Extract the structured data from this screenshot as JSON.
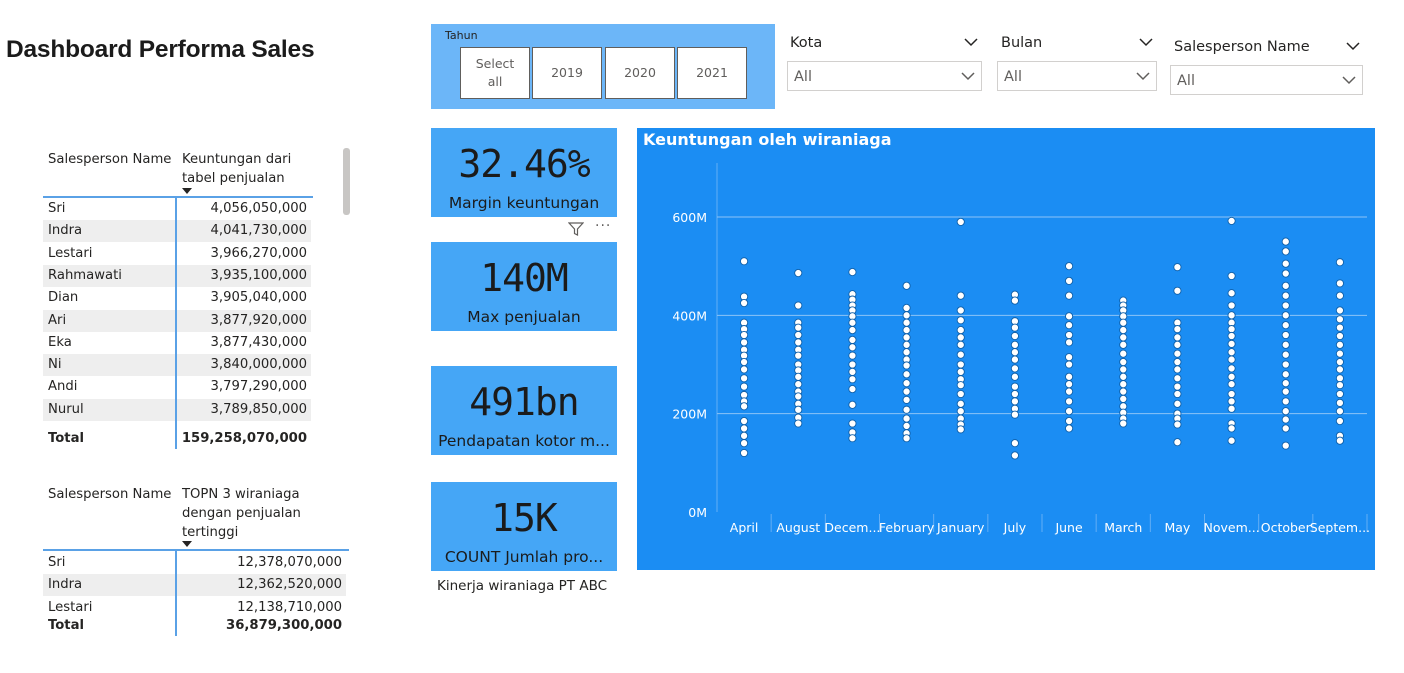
{
  "page": {
    "title": "Dashboard Performa Sales"
  },
  "table_profit": {
    "col_name": "Salesperson Name",
    "col_value": "Keuntungan dari tabel penjualan",
    "rows": [
      {
        "name": "Sri",
        "value": "4,056,050,000"
      },
      {
        "name": "Indra",
        "value": "4,041,730,000"
      },
      {
        "name": "Lestari",
        "value": "3,966,270,000"
      },
      {
        "name": "Rahmawati",
        "value": "3,935,100,000"
      },
      {
        "name": "Dian",
        "value": "3,905,040,000"
      },
      {
        "name": "Ari",
        "value": "3,877,920,000"
      },
      {
        "name": "Eka",
        "value": "3,877,430,000"
      },
      {
        "name": "Ni",
        "value": "3,840,000,000"
      },
      {
        "name": "Andi",
        "value": "3,797,290,000"
      },
      {
        "name": "Nurul",
        "value": "3,789,850,000"
      }
    ],
    "total_label": "Total",
    "total_value": "159,258,070,000"
  },
  "table_top3": {
    "col_name": "Salesperson Name",
    "col_value": "TOPN 3 wiraniaga dengan penjualan tertinggi",
    "rows": [
      {
        "name": "Sri",
        "value": "12,378,070,000"
      },
      {
        "name": "Indra",
        "value": "12,362,520,000"
      },
      {
        "name": "Lestari",
        "value": "12,138,710,000"
      }
    ],
    "total_label": "Total",
    "total_value": "36,879,300,000"
  },
  "slicer_tahun": {
    "title": "Tahun",
    "options": [
      "Select all",
      "2019",
      "2020",
      "2021"
    ]
  },
  "slicers": {
    "kota": {
      "title": "Kota",
      "value": "All"
    },
    "bulan": {
      "title": "Bulan",
      "value": "All"
    },
    "salesperson": {
      "title": "Salesperson Name",
      "value": "All"
    }
  },
  "kpis": [
    {
      "value": "32.46%",
      "label": "Margin keuntungan"
    },
    {
      "value": "140M",
      "label": "Max penjualan"
    },
    {
      "value": "491bn",
      "label": "Pendapatan kotor m..."
    },
    {
      "value": "15K",
      "label": "COUNT Jumlah pro..."
    }
  ],
  "footer_caption": "Kinerja wiraniaga PT ABC",
  "colors": {
    "accent": "#1b8df3",
    "card": "#45a6f6",
    "slicer_bg": "#6cb6f8",
    "table_line": "#5aa1e6"
  },
  "icons": [
    "filter-icon",
    "more-options-icon",
    "chevron-down-icon"
  ],
  "chart_data": {
    "type": "scatter",
    "title": "Keuntungan oleh wiraniaga",
    "xlabel": "",
    "ylabel": "",
    "ylim": [
      0,
      700
    ],
    "y_ticks": [
      "0M",
      "200M",
      "400M",
      "600M"
    ],
    "y_tick_values": [
      0,
      200,
      400,
      600
    ],
    "grid": true,
    "categories": [
      "April",
      "August",
      "Decem...",
      "February",
      "January",
      "July",
      "June",
      "March",
      "May",
      "Novem...",
      "October",
      "Septem..."
    ],
    "points": [
      [
        510,
        438,
        425,
        385,
        372,
        360,
        345,
        330,
        318,
        305,
        290,
        272,
        255,
        238,
        225,
        215,
        185,
        170,
        155,
        140,
        120
      ],
      [
        486,
        420,
        385,
        375,
        360,
        345,
        330,
        318,
        300,
        288,
        275,
        260,
        245,
        235,
        220,
        208,
        192,
        180
      ],
      [
        488,
        443,
        432,
        420,
        410,
        398,
        385,
        370,
        350,
        335,
        318,
        300,
        285,
        270,
        250,
        218,
        180,
        162,
        150
      ],
      [
        460,
        415,
        400,
        385,
        370,
        355,
        340,
        325,
        310,
        298,
        280,
        262,
        245,
        228,
        208,
        190,
        175,
        160,
        150
      ],
      [
        590,
        440,
        410,
        390,
        370,
        355,
        340,
        320,
        300,
        285,
        270,
        258,
        240,
        220,
        205,
        190,
        178,
        168
      ],
      [
        442,
        430,
        388,
        375,
        358,
        340,
        325,
        310,
        292,
        275,
        255,
        240,
        225,
        210,
        198,
        140,
        115
      ],
      [
        500,
        470,
        440,
        398,
        380,
        360,
        345,
        315,
        300,
        275,
        260,
        245,
        225,
        205,
        185,
        170
      ],
      [
        430,
        420,
        410,
        398,
        385,
        370,
        355,
        340,
        322,
        305,
        290,
        275,
        260,
        245,
        230,
        215,
        202,
        190,
        180
      ],
      [
        498,
        450,
        385,
        372,
        355,
        340,
        322,
        305,
        290,
        272,
        255,
        240,
        220,
        200,
        190,
        178,
        142
      ],
      [
        592,
        480,
        445,
        420,
        400,
        385,
        372,
        358,
        342,
        325,
        310,
        292,
        275,
        260,
        240,
        225,
        210,
        180,
        170,
        145
      ],
      [
        550,
        530,
        505,
        485,
        460,
        440,
        420,
        400,
        380,
        360,
        340,
        320,
        300,
        280,
        262,
        245,
        225,
        205,
        188,
        170,
        135
      ],
      [
        508,
        465,
        440,
        410,
        392,
        375,
        358,
        340,
        322,
        305,
        290,
        272,
        258,
        240,
        222,
        205,
        185,
        155,
        145
      ]
    ]
  }
}
